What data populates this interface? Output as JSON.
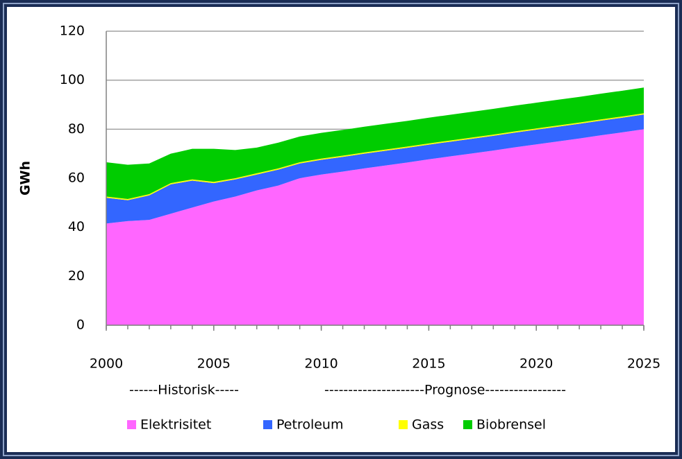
{
  "chart_data": {
    "type": "stacked-area",
    "ylabel": "GWh",
    "annotations": [
      "------Historisk-----",
      "---------------------Prognose-----------------"
    ],
    "x": [
      2000,
      2001,
      2002,
      2003,
      2004,
      2005,
      2006,
      2007,
      2008,
      2009,
      2010,
      2011,
      2012,
      2013,
      2014,
      2015,
      2016,
      2017,
      2018,
      2019,
      2020,
      2021,
      2022,
      2023,
      2024,
      2025
    ],
    "series": [
      {
        "name": "Elektrisitet",
        "color": "#ff66ff",
        "values": [
          41.5,
          42.5,
          43,
          45.5,
          48,
          50.5,
          52.5,
          55,
          57,
          60,
          61.5,
          62.7,
          64,
          65.2,
          66.4,
          67.7,
          68.9,
          70.1,
          71.3,
          72.6,
          73.8,
          75,
          76.2,
          77.5,
          78.7,
          80
        ]
      },
      {
        "name": "Petroleum",
        "color": "#3366ff",
        "values": [
          10.5,
          8.5,
          10,
          12,
          11,
          7.5,
          7,
          6.5,
          6.5,
          6,
          6,
          6,
          6,
          6,
          6,
          6,
          6,
          6,
          6,
          6,
          6,
          6,
          6,
          6,
          6,
          6
        ]
      },
      {
        "name": "Gass",
        "color": "#ffff00",
        "values": [
          0.5,
          0.5,
          0.5,
          0.5,
          0.5,
          0.5,
          0.5,
          0.5,
          0.5,
          0.5,
          0.5,
          0.5,
          0.5,
          0.5,
          0.5,
          0.5,
          0.5,
          0.5,
          0.5,
          0.5,
          0.5,
          0.5,
          0.5,
          0.5,
          0.5,
          0.5
        ]
      },
      {
        "name": "Biobrensel",
        "color": "#00cc00",
        "values": [
          14,
          14,
          12.5,
          12,
          12.5,
          13.5,
          11.5,
          10.5,
          10.5,
          10.5,
          10.5,
          10.5,
          10.5,
          10.5,
          10.5,
          10.5,
          10.5,
          10.5,
          10.5,
          10.5,
          10.5,
          10.5,
          10.5,
          10.5,
          10.5,
          10.5
        ]
      }
    ],
    "xlim": [
      2000,
      2025
    ],
    "xticks": [
      2000,
      2005,
      2010,
      2015,
      2020,
      2025
    ],
    "ylim": [
      0,
      120
    ],
    "yticks": [
      0,
      20,
      40,
      60,
      80,
      100,
      120
    ],
    "grid": true,
    "legend": "bottom"
  }
}
